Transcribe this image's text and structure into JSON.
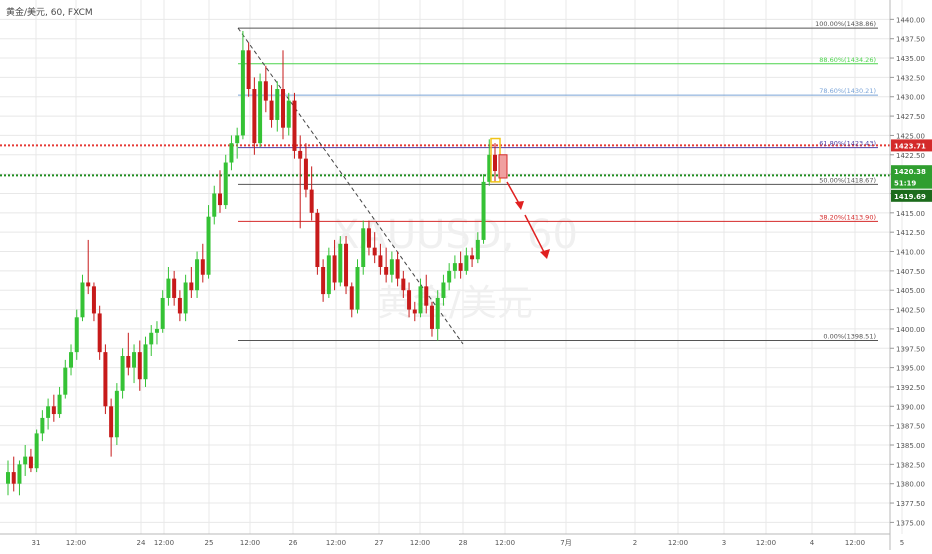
{
  "header": {
    "symbol": "黄金/美元, 60, FXCM"
  },
  "watermark": {
    "symbol": "XAUUSD, 60",
    "name": "黄金/美元"
  },
  "colors": {
    "up": "#35c235",
    "down": "#c71a1a",
    "grid": "#e8e8e8",
    "fib_gray": "#555555",
    "fib_green": "#4cd34c",
    "fib_blue": "#7aa4d8",
    "fib_purple": "#4b3fa4",
    "fib_red": "#d42a2a",
    "red_dotted": "#e53935",
    "green_dotted": "#1e8c1e",
    "arrow": "#e02020"
  },
  "chart_data": {
    "type": "candlestick",
    "ylim": [
      1373.5,
      1442.5
    ],
    "y_ticks": [
      "1440.00",
      "1437.50",
      "1435.00",
      "1432.50",
      "1430.00",
      "1427.50",
      "1425.00",
      "1422.50",
      "1420.00",
      "1417.50",
      "1415.00",
      "1412.50",
      "1410.00",
      "1407.50",
      "1405.00",
      "1402.50",
      "1400.00",
      "1397.50",
      "1395.00",
      "1392.50",
      "1390.00",
      "1387.50",
      "1385.00",
      "1382.50",
      "1380.00",
      "1377.50",
      "1375.00"
    ],
    "x_ticks": [
      "31",
      "12:00",
      "24",
      "12:00",
      "25",
      "12:00",
      "26",
      "12:00",
      "27",
      "12:00",
      "28",
      "12:00",
      "7月",
      "2",
      "12:00",
      "3",
      "12:00",
      "4",
      "12:00",
      "5"
    ],
    "fib_levels": [
      {
        "label": "100.00%(1438.86)",
        "value": 1438.86,
        "color": "fib_gray"
      },
      {
        "label": "88.60%(1434.26)",
        "value": 1434.26,
        "color": "fib_green"
      },
      {
        "label": "78.60%(1430.21)",
        "value": 1430.21,
        "color": "fib_blue"
      },
      {
        "label": "61.80%(1423.43)",
        "value": 1423.43,
        "color": "fib_purple"
      },
      {
        "label": "50.00%(1418.67)",
        "value": 1418.67,
        "color": "fib_gray"
      },
      {
        "label": "38.20%(1413.90)",
        "value": 1413.9,
        "color": "fib_red"
      },
      {
        "label": "0.00%(1398.51)",
        "value": 1398.51,
        "color": "fib_gray"
      }
    ],
    "horizontal_lines": [
      {
        "name": "red-dotted",
        "value": 1423.71,
        "color": "red_dotted"
      },
      {
        "name": "green-dotted",
        "value": 1419.84,
        "color": "green_dotted"
      }
    ],
    "price_badges": [
      {
        "label": "1423.71",
        "value": 1423.71,
        "color": "#d42a2a"
      },
      {
        "label": "1420.38",
        "value": 1420.38,
        "color": "#2f9e2f"
      },
      {
        "label": "51:19",
        "value": 1418.9,
        "color": "#2f9e2f"
      },
      {
        "label": "1419.69",
        "value": 1417.2,
        "color": "#1c6b1c"
      }
    ],
    "candles": [
      {
        "o": 1380.0,
        "h": 1383.0,
        "l": 1378.5,
        "c": 1381.5
      },
      {
        "o": 1381.5,
        "h": 1383.5,
        "l": 1379.0,
        "c": 1380.0
      },
      {
        "o": 1380.0,
        "h": 1383.0,
        "l": 1378.5,
        "c": 1382.5
      },
      {
        "o": 1382.5,
        "h": 1385.0,
        "l": 1381.0,
        "c": 1383.5
      },
      {
        "o": 1383.5,
        "h": 1384.5,
        "l": 1381.5,
        "c": 1382.0
      },
      {
        "o": 1382.0,
        "h": 1387.0,
        "l": 1381.5,
        "c": 1386.5
      },
      {
        "o": 1386.5,
        "h": 1389.5,
        "l": 1385.5,
        "c": 1388.5
      },
      {
        "o": 1388.5,
        "h": 1391.0,
        "l": 1387.0,
        "c": 1390.0
      },
      {
        "o": 1390.0,
        "h": 1391.5,
        "l": 1388.0,
        "c": 1389.0
      },
      {
        "o": 1389.0,
        "h": 1392.5,
        "l": 1388.5,
        "c": 1391.5
      },
      {
        "o": 1391.5,
        "h": 1396.0,
        "l": 1391.0,
        "c": 1395.0
      },
      {
        "o": 1395.0,
        "h": 1398.0,
        "l": 1394.0,
        "c": 1397.0
      },
      {
        "o": 1397.0,
        "h": 1402.5,
        "l": 1396.0,
        "c": 1401.5
      },
      {
        "o": 1401.5,
        "h": 1407.0,
        "l": 1401.0,
        "c": 1406.0
      },
      {
        "o": 1406.0,
        "h": 1411.5,
        "l": 1404.5,
        "c": 1405.5
      },
      {
        "o": 1405.5,
        "h": 1406.0,
        "l": 1401.0,
        "c": 1402.0
      },
      {
        "o": 1402.0,
        "h": 1403.0,
        "l": 1396.0,
        "c": 1397.0
      },
      {
        "o": 1397.0,
        "h": 1398.0,
        "l": 1389.0,
        "c": 1390.0
      },
      {
        "o": 1390.0,
        "h": 1391.0,
        "l": 1383.5,
        "c": 1386.0
      },
      {
        "o": 1386.0,
        "h": 1393.0,
        "l": 1385.0,
        "c": 1392.0
      },
      {
        "o": 1392.0,
        "h": 1397.5,
        "l": 1391.0,
        "c": 1396.5
      },
      {
        "o": 1396.5,
        "h": 1399.5,
        "l": 1394.0,
        "c": 1395.0
      },
      {
        "o": 1395.0,
        "h": 1398.0,
        "l": 1393.0,
        "c": 1397.0
      },
      {
        "o": 1397.0,
        "h": 1398.5,
        "l": 1392.0,
        "c": 1393.5
      },
      {
        "o": 1393.5,
        "h": 1399.0,
        "l": 1392.5,
        "c": 1398.0
      },
      {
        "o": 1398.0,
        "h": 1400.5,
        "l": 1396.5,
        "c": 1399.5
      },
      {
        "o": 1399.5,
        "h": 1401.0,
        "l": 1398.0,
        "c": 1400.0
      },
      {
        "o": 1400.0,
        "h": 1405.0,
        "l": 1399.5,
        "c": 1404.0
      },
      {
        "o": 1404.0,
        "h": 1408.0,
        "l": 1403.0,
        "c": 1406.5
      },
      {
        "o": 1406.5,
        "h": 1407.5,
        "l": 1403.0,
        "c": 1404.0
      },
      {
        "o": 1404.0,
        "h": 1405.0,
        "l": 1401.0,
        "c": 1402.0
      },
      {
        "o": 1402.0,
        "h": 1407.0,
        "l": 1401.0,
        "c": 1406.0
      },
      {
        "o": 1406.0,
        "h": 1408.0,
        "l": 1404.0,
        "c": 1405.0
      },
      {
        "o": 1405.0,
        "h": 1410.0,
        "l": 1404.0,
        "c": 1409.0
      },
      {
        "o": 1409.0,
        "h": 1411.0,
        "l": 1406.0,
        "c": 1407.0
      },
      {
        "o": 1407.0,
        "h": 1416.0,
        "l": 1406.5,
        "c": 1414.5
      },
      {
        "o": 1414.5,
        "h": 1418.5,
        "l": 1413.5,
        "c": 1417.5
      },
      {
        "o": 1417.5,
        "h": 1420.5,
        "l": 1415.0,
        "c": 1416.0
      },
      {
        "o": 1416.0,
        "h": 1422.5,
        "l": 1415.5,
        "c": 1421.5
      },
      {
        "o": 1421.5,
        "h": 1425.0,
        "l": 1420.5,
        "c": 1424.0
      },
      {
        "o": 1424.0,
        "h": 1426.0,
        "l": 1422.0,
        "c": 1425.0
      },
      {
        "o": 1425.0,
        "h": 1438.5,
        "l": 1424.5,
        "c": 1436.0
      },
      {
        "o": 1436.0,
        "h": 1437.0,
        "l": 1430.0,
        "c": 1431.0
      },
      {
        "o": 1431.0,
        "h": 1432.5,
        "l": 1422.5,
        "c": 1424.0
      },
      {
        "o": 1424.0,
        "h": 1433.0,
        "l": 1423.5,
        "c": 1432.0
      },
      {
        "o": 1432.0,
        "h": 1434.0,
        "l": 1428.0,
        "c": 1429.5
      },
      {
        "o": 1429.5,
        "h": 1431.5,
        "l": 1426.0,
        "c": 1427.0
      },
      {
        "o": 1427.0,
        "h": 1432.0,
        "l": 1425.5,
        "c": 1431.0
      },
      {
        "o": 1431.0,
        "h": 1436.0,
        "l": 1424.5,
        "c": 1426.0
      },
      {
        "o": 1426.0,
        "h": 1430.5,
        "l": 1425.0,
        "c": 1429.5
      },
      {
        "o": 1429.5,
        "h": 1430.5,
        "l": 1422.0,
        "c": 1423.0
      },
      {
        "o": 1423.0,
        "h": 1425.0,
        "l": 1413.0,
        "c": 1422.0
      },
      {
        "o": 1422.0,
        "h": 1424.0,
        "l": 1417.0,
        "c": 1418.0
      },
      {
        "o": 1418.0,
        "h": 1421.0,
        "l": 1414.0,
        "c": 1415.0
      },
      {
        "o": 1415.0,
        "h": 1415.5,
        "l": 1407.0,
        "c": 1408.0
      },
      {
        "o": 1408.0,
        "h": 1409.0,
        "l": 1403.5,
        "c": 1404.5
      },
      {
        "o": 1404.5,
        "h": 1410.5,
        "l": 1404.0,
        "c": 1409.5
      },
      {
        "o": 1409.5,
        "h": 1411.5,
        "l": 1405.0,
        "c": 1406.0
      },
      {
        "o": 1406.0,
        "h": 1412.0,
        "l": 1405.5,
        "c": 1411.0
      },
      {
        "o": 1411.0,
        "h": 1412.0,
        "l": 1404.5,
        "c": 1405.5
      },
      {
        "o": 1405.5,
        "h": 1406.0,
        "l": 1401.5,
        "c": 1402.5
      },
      {
        "o": 1402.5,
        "h": 1409.0,
        "l": 1402.0,
        "c": 1408.0
      },
      {
        "o": 1408.0,
        "h": 1414.0,
        "l": 1407.0,
        "c": 1413.0
      },
      {
        "o": 1413.0,
        "h": 1414.0,
        "l": 1409.5,
        "c": 1410.5
      },
      {
        "o": 1410.5,
        "h": 1412.5,
        "l": 1408.5,
        "c": 1409.5
      },
      {
        "o": 1409.5,
        "h": 1411.0,
        "l": 1407.0,
        "c": 1408.0
      },
      {
        "o": 1408.0,
        "h": 1410.5,
        "l": 1406.0,
        "c": 1407.0
      },
      {
        "o": 1407.0,
        "h": 1410.0,
        "l": 1406.0,
        "c": 1409.0
      },
      {
        "o": 1409.0,
        "h": 1410.0,
        "l": 1405.5,
        "c": 1406.5
      },
      {
        "o": 1406.5,
        "h": 1407.5,
        "l": 1404.0,
        "c": 1405.0
      },
      {
        "o": 1405.0,
        "h": 1406.0,
        "l": 1401.5,
        "c": 1402.5
      },
      {
        "o": 1402.5,
        "h": 1403.5,
        "l": 1401.0,
        "c": 1402.0
      },
      {
        "o": 1402.0,
        "h": 1406.5,
        "l": 1401.5,
        "c": 1405.5
      },
      {
        "o": 1405.5,
        "h": 1407.0,
        "l": 1402.0,
        "c": 1403.0
      },
      {
        "o": 1403.0,
        "h": 1403.5,
        "l": 1399.0,
        "c": 1400.0
      },
      {
        "o": 1400.0,
        "h": 1405.0,
        "l": 1398.5,
        "c": 1404.0
      },
      {
        "o": 1404.0,
        "h": 1407.0,
        "l": 1403.0,
        "c": 1406.0
      },
      {
        "o": 1406.0,
        "h": 1408.5,
        "l": 1405.0,
        "c": 1407.5
      },
      {
        "o": 1407.5,
        "h": 1409.5,
        "l": 1406.5,
        "c": 1408.5
      },
      {
        "o": 1408.5,
        "h": 1410.0,
        "l": 1406.5,
        "c": 1407.5
      },
      {
        "o": 1407.5,
        "h": 1410.5,
        "l": 1407.0,
        "c": 1409.5
      },
      {
        "o": 1409.5,
        "h": 1410.5,
        "l": 1408.0,
        "c": 1409.0
      },
      {
        "o": 1409.0,
        "h": 1412.5,
        "l": 1408.5,
        "c": 1411.5
      },
      {
        "o": 1411.5,
        "h": 1420.0,
        "l": 1411.0,
        "c": 1419.0
      },
      {
        "o": 1419.0,
        "h": 1424.5,
        "l": 1418.5,
        "c": 1422.5
      },
      {
        "o": 1422.5,
        "h": 1424.0,
        "l": 1419.0,
        "c": 1420.4
      }
    ]
  }
}
